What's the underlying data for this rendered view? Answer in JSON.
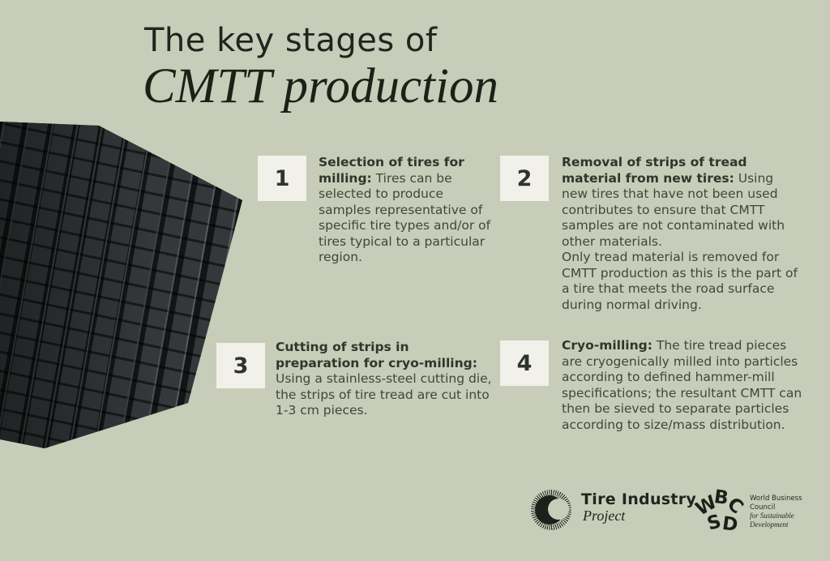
{
  "title": {
    "line1": "The key stages of",
    "line2": "CMTT production"
  },
  "stages": [
    {
      "number": "1",
      "heading": "Selection of tires for milling:",
      "body": " Tires can be selected to produce samples representative of specific tire types and/or of tires typical to a particular region."
    },
    {
      "number": "2",
      "heading": "Removal of strips of tread material from new tires:",
      "body": " Using new tires that have not been used contributes to ensure that CMTT samples are not contaminated with other materials.\nOnly tread material is removed for CMTT production as this is the part of a tire that meets the road surface during normal driving."
    },
    {
      "number": "3",
      "heading": "Cutting of strips in preparation for cryo-milling:",
      "body": "\nUsing a stainless-steel cutting die, the strips of tire tread are cut into 1-3 cm pieces."
    },
    {
      "number": "4",
      "heading": "Cryo-milling:",
      "body": " The tire tread pieces are cryogenically milled into particles according to defined hammer-mill specifications; the resultant CMTT can then be sieved to separate particles according to size/mass distribution."
    }
  ],
  "footer": {
    "tire_industry_project": {
      "logo_icon": "sunburst-crescent-icon",
      "name": "Tire Industry",
      "subname": "Project"
    },
    "wbcsd": {
      "logo_icon": "wbcsd-circular-letters-icon",
      "letters": [
        "W",
        "B",
        "C",
        "S",
        "D"
      ],
      "line1": "World Business",
      "line2": "Council",
      "line3": "for Sustainable",
      "line4": "Development"
    }
  },
  "colors": {
    "background": "#c7cdb9",
    "number_box": "#f1f0e9",
    "heading_text": "#2f362c",
    "body_text": "#3f463d",
    "title_text": "#20261e",
    "tire_dark": "#1a1d1e"
  }
}
